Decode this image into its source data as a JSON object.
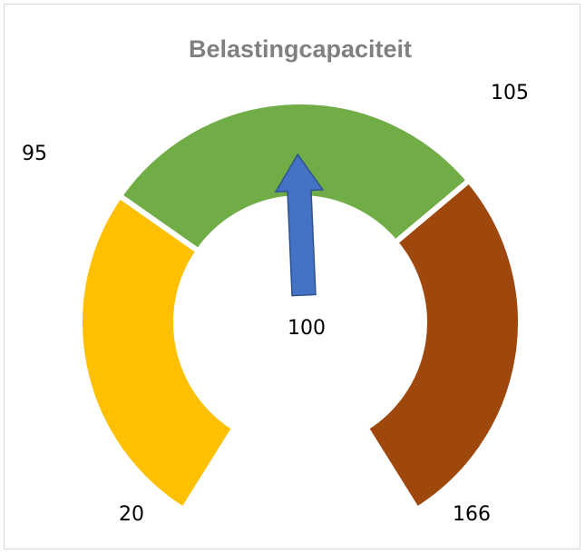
{
  "chart_data": {
    "type": "gauge",
    "title": "Belastingcapaciteit",
    "thresholds": [
      20,
      95,
      105,
      166
    ],
    "band_colors": [
      "#ffc000",
      "#70ad47",
      "#9e480e"
    ],
    "value": 100,
    "needle_color": "#4472c4"
  }
}
